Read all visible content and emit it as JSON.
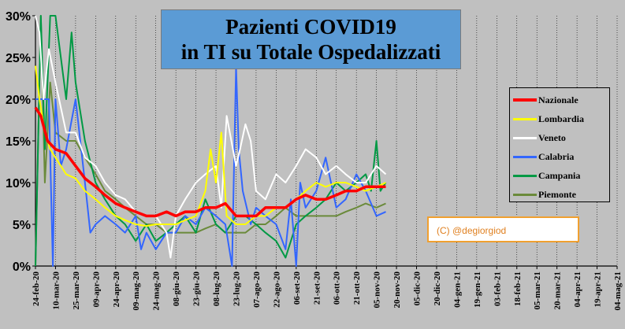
{
  "chart_data": {
    "type": "line",
    "title_lines": [
      "Pazienti COVID19",
      "in TI su Totale Ospedalizzati"
    ],
    "xlabel": "",
    "ylabel": "",
    "ylim": [
      0,
      30
    ],
    "yticks": [
      "0%",
      "5%",
      "10%",
      "15%",
      "20%",
      "25%",
      "30%"
    ],
    "xlim": [
      "2020-02-24",
      "2021-05-04"
    ],
    "xticks": [
      "24-feb-20",
      "10-mar-20",
      "25-mar-20",
      "09-apr-20",
      "24-apr-20",
      "09-mag-20",
      "24-mag-20",
      "08-giu-20",
      "23-giu-20",
      "08-lug-20",
      "23-lug-20",
      "07-ago-20",
      "22-ago-20",
      "06-set-20",
      "21-set-20",
      "06-ott-20",
      "21-ott-20",
      "05-nov-20",
      "20-nov-20",
      "05-dic-20",
      "20-dic-20",
      "04-gen-21",
      "19-gen-21",
      "03-feb-21",
      "18-feb-21",
      "05-mar-21",
      "20-mar-21",
      "04-apr-21",
      "19-apr-21",
      "04-mag-21"
    ],
    "grid": "vertical-major",
    "legend_position": "right",
    "series": [
      {
        "name": "Nazionale",
        "color": "#ff0000",
        "x": [
          "2020-02-24",
          "2020-02-28",
          "2020-03-04",
          "2020-03-10",
          "2020-03-18",
          "2020-03-25",
          "2020-04-01",
          "2020-04-09",
          "2020-04-16",
          "2020-04-24",
          "2020-05-01",
          "2020-05-09",
          "2020-05-17",
          "2020-05-24",
          "2020-06-01",
          "2020-06-08",
          "2020-06-15",
          "2020-06-23",
          "2020-06-30",
          "2020-07-08",
          "2020-07-15",
          "2020-07-23",
          "2020-07-30",
          "2020-08-07",
          "2020-08-14",
          "2020-08-22",
          "2020-08-29",
          "2020-09-06",
          "2020-09-13",
          "2020-09-21",
          "2020-09-28",
          "2020-10-06",
          "2020-10-13",
          "2020-10-21",
          "2020-10-28",
          "2020-11-05",
          "2020-11-12"
        ],
        "y": [
          19,
          18,
          15,
          14,
          13.5,
          12,
          10.5,
          9.5,
          8.5,
          7.5,
          7,
          6.5,
          6,
          6,
          6.5,
          6,
          6.5,
          6.5,
          7,
          7,
          7.5,
          6,
          6,
          6,
          7,
          7,
          7,
          8,
          8.5,
          8,
          8,
          8.5,
          9,
          9,
          9.5,
          9.5,
          9.5
        ]
      },
      {
        "name": "Lombardia",
        "color": "#ffff00",
        "x": [
          "2020-02-24",
          "2020-02-27",
          "2020-03-02",
          "2020-03-06",
          "2020-03-10",
          "2020-03-18",
          "2020-03-25",
          "2020-04-01",
          "2020-04-09",
          "2020-04-16",
          "2020-04-24",
          "2020-05-01",
          "2020-05-09",
          "2020-05-17",
          "2020-05-24",
          "2020-06-01",
          "2020-06-08",
          "2020-06-15",
          "2020-06-23",
          "2020-06-30",
          "2020-07-04",
          "2020-07-08",
          "2020-07-12",
          "2020-07-16",
          "2020-07-23",
          "2020-07-30",
          "2020-08-07",
          "2020-08-14",
          "2020-08-22",
          "2020-08-29",
          "2020-09-06",
          "2020-09-13",
          "2020-09-21",
          "2020-09-28",
          "2020-10-06",
          "2020-10-13",
          "2020-10-21",
          "2020-10-28",
          "2020-11-05",
          "2020-11-12"
        ],
        "y": [
          24,
          20,
          16,
          14,
          13,
          11,
          10.5,
          9,
          8,
          7,
          6,
          5.5,
          5,
          4.8,
          5,
          5,
          5,
          5.5,
          6,
          9,
          14,
          10,
          16,
          6,
          5,
          5,
          6,
          6,
          7,
          7,
          8,
          9,
          10,
          9.5,
          10,
          10,
          9.5,
          9,
          9.5,
          10
        ]
      },
      {
        "name": "Veneto",
        "color": "#ffffff",
        "x": [
          "2020-02-24",
          "2020-02-27",
          "2020-03-01",
          "2020-03-05",
          "2020-03-10",
          "2020-03-18",
          "2020-03-25",
          "2020-04-01",
          "2020-04-09",
          "2020-04-16",
          "2020-04-24",
          "2020-05-01",
          "2020-05-09",
          "2020-05-17",
          "2020-05-24",
          "2020-06-01",
          "2020-06-04",
          "2020-06-08",
          "2020-06-15",
          "2020-06-23",
          "2020-06-30",
          "2020-07-08",
          "2020-07-12",
          "2020-07-16",
          "2020-07-23",
          "2020-07-26",
          "2020-07-30",
          "2020-08-03",
          "2020-08-07",
          "2020-08-14",
          "2020-08-22",
          "2020-08-29",
          "2020-09-06",
          "2020-09-13",
          "2020-09-21",
          "2020-09-28",
          "2020-10-06",
          "2020-10-13",
          "2020-10-21",
          "2020-10-28",
          "2020-11-05",
          "2020-11-12"
        ],
        "y": [
          30,
          28,
          20,
          26,
          22,
          16,
          16,
          13,
          12,
          10,
          8.5,
          8,
          6.5,
          6,
          6,
          4,
          1,
          6,
          8,
          10,
          11,
          12,
          7,
          18,
          12,
          14,
          17,
          15,
          9,
          8,
          11,
          10,
          12,
          14,
          13,
          11,
          12,
          11,
          10,
          10,
          12,
          11
        ]
      },
      {
        "name": "Calabria",
        "color": "#3366ff",
        "x": [
          "2020-02-24",
          "2020-03-05",
          "2020-03-08",
          "2020-03-10",
          "2020-03-14",
          "2020-03-18",
          "2020-03-25",
          "2020-04-01",
          "2020-04-05",
          "2020-04-09",
          "2020-04-16",
          "2020-04-24",
          "2020-05-01",
          "2020-05-09",
          "2020-05-13",
          "2020-05-17",
          "2020-05-24",
          "2020-06-01",
          "2020-06-08",
          "2020-06-15",
          "2020-06-23",
          "2020-06-30",
          "2020-07-08",
          "2020-07-15",
          "2020-07-20",
          "2020-07-23",
          "2020-07-25",
          "2020-07-28",
          "2020-08-03",
          "2020-08-07",
          "2020-08-14",
          "2020-08-22",
          "2020-08-29",
          "2020-09-02",
          "2020-09-06",
          "2020-09-09",
          "2020-09-13",
          "2020-09-21",
          "2020-09-28",
          "2020-10-06",
          "2020-10-13",
          "2020-10-21",
          "2020-10-28",
          "2020-11-05",
          "2020-11-12"
        ],
        "y": [
          20,
          20,
          0,
          20,
          12,
          14,
          20,
          10,
          4,
          5,
          6,
          5,
          4,
          6,
          2,
          4,
          2,
          4,
          4,
          6,
          5,
          7,
          6,
          5,
          0,
          24,
          14,
          9,
          5,
          7,
          6,
          5,
          2,
          8,
          0,
          10,
          7,
          9,
          13,
          7,
          8,
          11,
          9,
          6,
          6.5
        ]
      },
      {
        "name": "Campania",
        "color": "#009944",
        "x": [
          "2020-02-24",
          "2020-02-28",
          "2020-03-02",
          "2020-03-06",
          "2020-03-10",
          "2020-03-14",
          "2020-03-18",
          "2020-03-22",
          "2020-03-25",
          "2020-04-01",
          "2020-04-09",
          "2020-04-16",
          "2020-04-24",
          "2020-05-01",
          "2020-05-09",
          "2020-05-17",
          "2020-05-24",
          "2020-06-01",
          "2020-06-08",
          "2020-06-15",
          "2020-06-23",
          "2020-06-30",
          "2020-07-08",
          "2020-07-15",
          "2020-07-23",
          "2020-07-30",
          "2020-08-07",
          "2020-08-14",
          "2020-08-22",
          "2020-08-29",
          "2020-09-06",
          "2020-09-13",
          "2020-09-21",
          "2020-09-28",
          "2020-10-06",
          "2020-10-13",
          "2020-10-21",
          "2020-10-28",
          "2020-11-01",
          "2020-11-05",
          "2020-11-08",
          "2020-11-12"
        ],
        "y": [
          0,
          30,
          14,
          30,
          30,
          25,
          20,
          28,
          22,
          15,
          10,
          8,
          6,
          5,
          3,
          5,
          3,
          4,
          5,
          6,
          4,
          8,
          5,
          4,
          6,
          6,
          5,
          4,
          3,
          1,
          5,
          6,
          7,
          8,
          10,
          9,
          10,
          11,
          9,
          15,
          9,
          10
        ]
      },
      {
        "name": "Piemonte",
        "color": "#6a8a3a",
        "x": [
          "2020-02-24",
          "2020-02-28",
          "2020-03-02",
          "2020-03-06",
          "2020-03-10",
          "2020-03-18",
          "2020-03-25",
          "2020-04-01",
          "2020-04-09",
          "2020-04-16",
          "2020-04-24",
          "2020-05-01",
          "2020-05-09",
          "2020-05-17",
          "2020-05-24",
          "2020-06-01",
          "2020-06-08",
          "2020-06-15",
          "2020-06-23",
          "2020-06-30",
          "2020-07-08",
          "2020-07-15",
          "2020-07-23",
          "2020-07-30",
          "2020-08-07",
          "2020-08-14",
          "2020-08-22",
          "2020-08-29",
          "2020-09-06",
          "2020-09-13",
          "2020-09-21",
          "2020-09-28",
          "2020-10-06",
          "2020-10-13",
          "2020-10-21",
          "2020-10-28",
          "2020-11-05",
          "2020-11-12"
        ],
        "y": [
          0,
          30,
          10,
          22,
          16,
          15,
          15,
          13,
          11,
          9,
          8,
          7,
          6,
          5,
          5,
          4,
          4,
          4,
          4,
          4.5,
          5,
          4,
          4,
          4,
          5,
          5,
          6,
          7,
          6,
          6,
          6,
          6,
          6,
          6.5,
          7,
          7.5,
          7,
          7.5
        ]
      }
    ]
  },
  "copyright": "(C) @degiorgiod"
}
